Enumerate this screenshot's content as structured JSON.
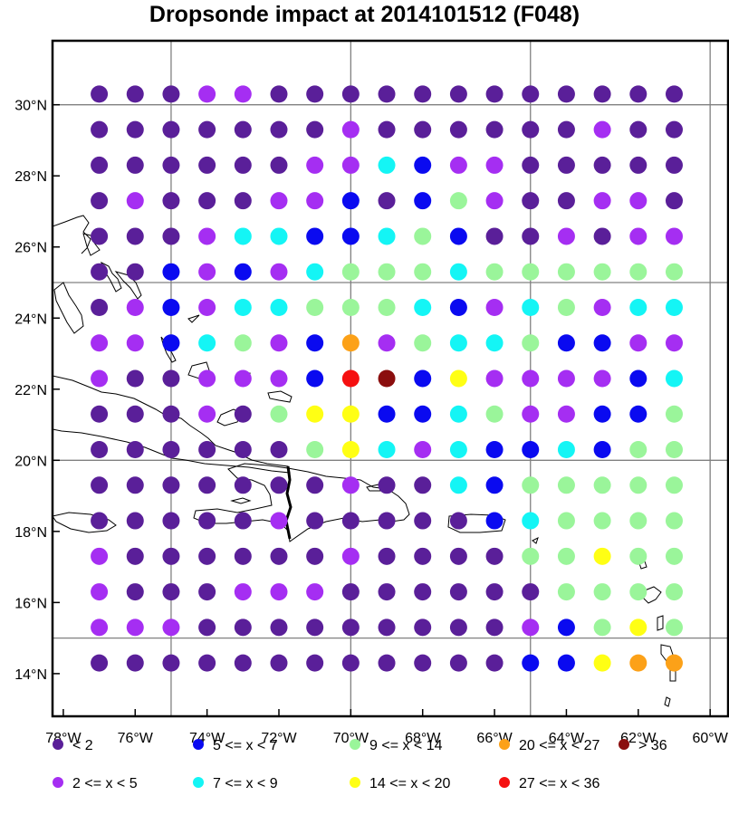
{
  "title": "Dropsonde impact at 2014101512 (F048)",
  "lon_range": [
    -78.3,
    -59.5
  ],
  "lat_range": [
    12.8,
    31.8
  ],
  "grid_lons": [
    -75,
    -70,
    -65,
    -60
  ],
  "grid_lats": [
    15,
    20,
    25,
    30
  ],
  "x_ticks": [
    "78°W",
    "76°W",
    "74°W",
    "72°W",
    "70°W",
    "68°W",
    "66°W",
    "64°W",
    "62°W",
    "60°W"
  ],
  "y_ticks": [
    "14°N",
    "16°N",
    "18°N",
    "20°N",
    "22°N",
    "24°N",
    "26°N",
    "28°N",
    "30°N"
  ],
  "categories": [
    {
      "code": 0,
      "label": "<  2",
      "color": "#5a1f99"
    },
    {
      "code": 1,
      "label": "2 <= x <  5",
      "color": "#a52ef2"
    },
    {
      "code": 2,
      "label": "5 <= x <  7",
      "color": "#0a0af0"
    },
    {
      "code": 3,
      "label": "7 <= x <  9",
      "color": "#14f5f5"
    },
    {
      "code": 4,
      "label": "9 <= x < 14",
      "color": "#9af59a"
    },
    {
      "code": 5,
      "label": "14 <= x < 20",
      "color": "#ffff14"
    },
    {
      "code": 6,
      "label": "20 <= x < 27",
      "color": "#fca118"
    },
    {
      "code": 7,
      "label": "27 <= x < 36",
      "color": "#f51010"
    },
    {
      "code": 8,
      "label": "> 36",
      "color": "#8b0e0e"
    }
  ],
  "points": {
    "lons": [
      -77,
      -76,
      -75,
      -74,
      -73,
      -72,
      -71,
      -70,
      -69,
      -68,
      -67,
      -66,
      -65,
      -64,
      -63,
      -62,
      -61
    ],
    "lats": [
      30.3,
      29.3,
      28.3,
      27.3,
      26.3,
      25.3,
      24.3,
      23.3,
      22.3,
      21.3,
      20.3,
      19.3,
      18.3,
      17.3,
      16.3,
      15.3,
      14.3
    ],
    "codes": [
      [
        0,
        0,
        0,
        1,
        1,
        0,
        0,
        0,
        0,
        0,
        0,
        0,
        0,
        0,
        0,
        0,
        0
      ],
      [
        0,
        0,
        0,
        0,
        0,
        0,
        0,
        1,
        0,
        0,
        0,
        0,
        0,
        0,
        1,
        0,
        0
      ],
      [
        0,
        0,
        0,
        0,
        0,
        0,
        1,
        1,
        3,
        2,
        1,
        1,
        0,
        0,
        0,
        0,
        0
      ],
      [
        0,
        1,
        0,
        0,
        0,
        1,
        1,
        2,
        0,
        2,
        4,
        1,
        0,
        0,
        1,
        1,
        0
      ],
      [
        0,
        0,
        0,
        1,
        3,
        3,
        2,
        2,
        3,
        4,
        2,
        0,
        0,
        1,
        0,
        1,
        1
      ],
      [
        0,
        0,
        2,
        1,
        2,
        1,
        3,
        4,
        4,
        4,
        3,
        4,
        4,
        4,
        4,
        4,
        4
      ],
      [
        0,
        1,
        2,
        1,
        3,
        3,
        4,
        4,
        4,
        3,
        2,
        1,
        3,
        4,
        1,
        3,
        3
      ],
      [
        1,
        1,
        2,
        3,
        4,
        1,
        2,
        6,
        1,
        4,
        3,
        3,
        4,
        2,
        2,
        1,
        1
      ],
      [
        1,
        0,
        0,
        1,
        1,
        1,
        2,
        7,
        8,
        2,
        5,
        1,
        1,
        1,
        1,
        2,
        3
      ],
      [
        0,
        0,
        0,
        1,
        0,
        4,
        5,
        5,
        2,
        2,
        3,
        4,
        1,
        1,
        2,
        2,
        4
      ],
      [
        0,
        0,
        0,
        0,
        0,
        0,
        4,
        5,
        3,
        1,
        3,
        2,
        2,
        3,
        2,
        4,
        4
      ],
      [
        0,
        0,
        0,
        0,
        0,
        0,
        0,
        1,
        0,
        0,
        3,
        2,
        4,
        4,
        4,
        4,
        4
      ],
      [
        0,
        0,
        0,
        0,
        0,
        1,
        0,
        0,
        0,
        0,
        0,
        2,
        3,
        4,
        4,
        4,
        4
      ],
      [
        1,
        0,
        0,
        0,
        0,
        0,
        0,
        1,
        0,
        0,
        0,
        0,
        4,
        4,
        5,
        4,
        4
      ],
      [
        1,
        0,
        0,
        0,
        1,
        1,
        1,
        0,
        0,
        0,
        0,
        0,
        0,
        4,
        4,
        4,
        4
      ],
      [
        1,
        1,
        1,
        0,
        0,
        0,
        0,
        0,
        0,
        0,
        0,
        0,
        1,
        2,
        4,
        5,
        4
      ],
      [
        0,
        0,
        0,
        0,
        0,
        0,
        0,
        0,
        0,
        0,
        0,
        0,
        2,
        2,
        5,
        6,
        6
      ]
    ]
  }
}
